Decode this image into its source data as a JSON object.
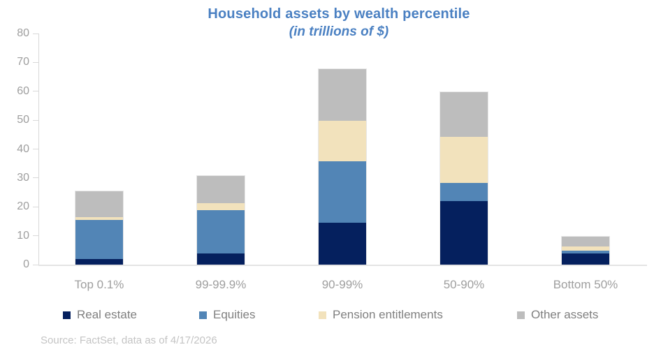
{
  "chart_data": {
    "type": "bar",
    "stacked": true,
    "title": "Household assets by wealth percentile",
    "subtitle": "(in trillions of $)",
    "categories": [
      "Top 0.1%",
      "99-99.9%",
      "90-99%",
      "50-90%",
      "Bottom 50%"
    ],
    "series": [
      {
        "name": "Real estate",
        "color": "#05205e",
        "values": [
          2,
          4,
          14.5,
          22,
          4
        ]
      },
      {
        "name": "Equities",
        "color": "#5285b6",
        "values": [
          13.5,
          15,
          21.5,
          6.5,
          1
        ]
      },
      {
        "name": "Pension entitlements",
        "color": "#f2e2bc",
        "values": [
          1,
          2.5,
          14,
          16,
          1.5
        ]
      },
      {
        "name": "Other assets",
        "color": "#bdbdbd",
        "values": [
          9,
          9.5,
          18,
          15.5,
          3.5
        ]
      }
    ],
    "totals": [
      25.5,
      31,
      68,
      60,
      10
    ],
    "ylim": [
      0,
      80
    ],
    "yticks": [
      0,
      10,
      20,
      30,
      40,
      50,
      60,
      70,
      80
    ],
    "grid": false,
    "legend_position": "bottom",
    "xlabel": "",
    "ylabel": ""
  },
  "colors": {
    "title_text": "#4a80c2",
    "axis_line": "#d9d9d9",
    "axis_label": "#9e9e9e",
    "legend_text": "#7f7f7f",
    "source_text": "#c4c4c4"
  },
  "source": {
    "text": "Source: FactSet, data as of 4/17/2026"
  }
}
